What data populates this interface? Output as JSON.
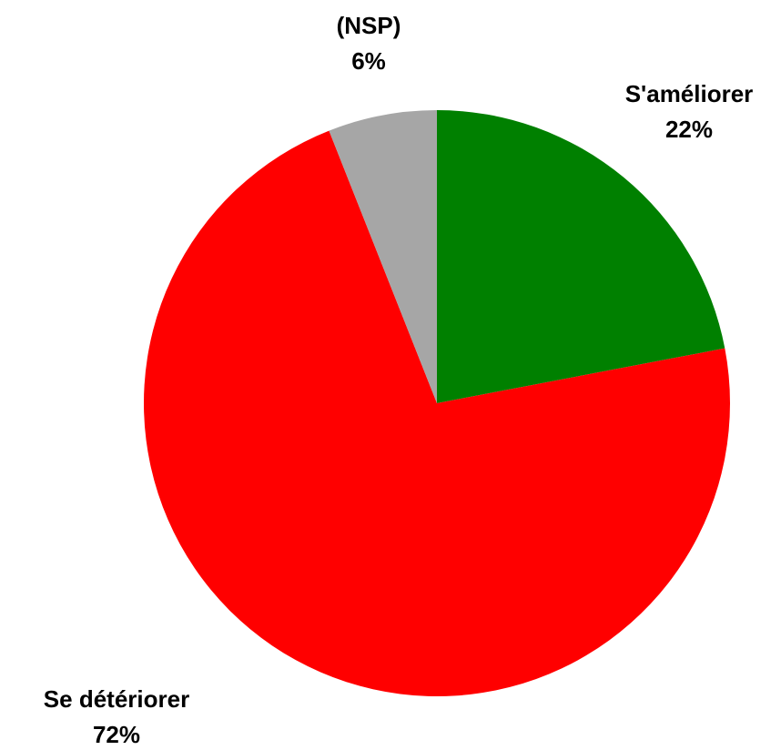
{
  "chart_data": {
    "type": "pie",
    "categories": [
      "S'améliorer",
      "Se détériorer",
      "(NSP)"
    ],
    "values": [
      22,
      72,
      6
    ],
    "value_labels": [
      "22%",
      "72%",
      "6%"
    ],
    "colors": [
      "#008000",
      "#ff0000",
      "#a6a6a6"
    ]
  }
}
